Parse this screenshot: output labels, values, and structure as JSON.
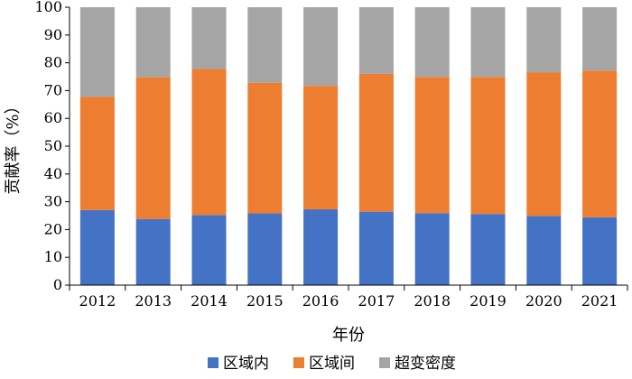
{
  "chart_data": {
    "type": "bar",
    "stacked": true,
    "categories": [
      "2012",
      "2013",
      "2014",
      "2015",
      "2016",
      "2017",
      "2018",
      "2019",
      "2020",
      "2021"
    ],
    "series": [
      {
        "name": "区域内",
        "color": "#4472C4",
        "values": [
          27.0,
          23.8,
          25.2,
          25.8,
          27.3,
          26.4,
          25.9,
          25.6,
          24.9,
          24.4
        ]
      },
      {
        "name": "区域间",
        "color": "#ED7D31",
        "values": [
          40.8,
          51.0,
          52.6,
          47.0,
          44.4,
          49.6,
          49.0,
          49.3,
          51.7,
          52.8
        ]
      },
      {
        "name": "超变密度",
        "color": "#A5A5A5",
        "values": [
          32.2,
          25.2,
          22.2,
          27.2,
          28.3,
          24.0,
          25.1,
          25.1,
          23.4,
          22.8
        ]
      }
    ],
    "xlabel": "年份",
    "ylabel": "贡献率（%）",
    "ylim": [
      0,
      100
    ],
    "yticks": [
      0,
      10,
      20,
      30,
      40,
      50,
      60,
      70,
      80,
      90,
      100
    ],
    "grid": false,
    "legend": "bottom"
  }
}
